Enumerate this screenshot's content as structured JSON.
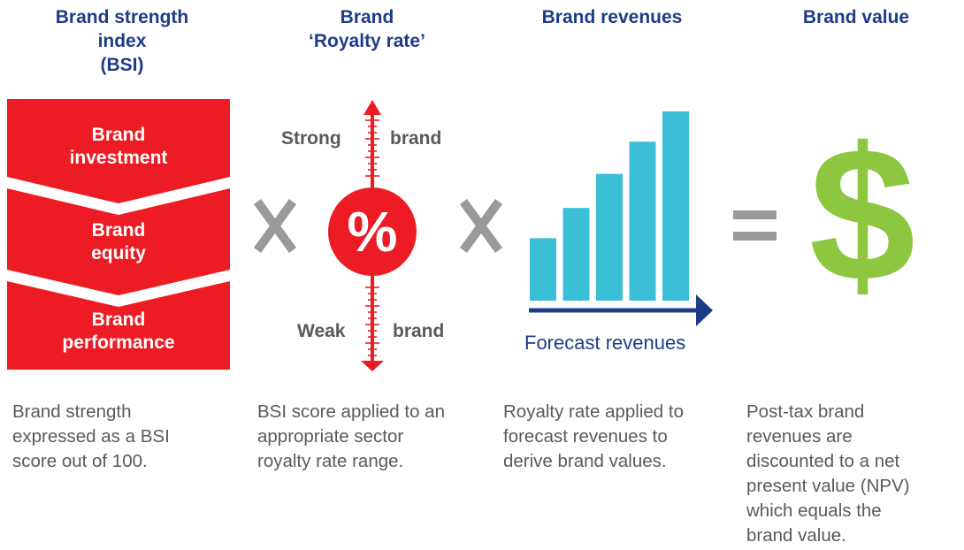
{
  "columns": [
    {
      "heading": [
        "Brand strength",
        "index",
        "(BSI)"
      ],
      "description": [
        "Brand strength",
        "expressed as a BSI",
        "score out of 100."
      ]
    },
    {
      "heading": [
        "Brand",
        "‘Royalty rate’"
      ],
      "description": [
        "BSI score applied to an",
        "appropriate sector",
        "royalty rate range."
      ]
    },
    {
      "heading": [
        "Brand revenues"
      ],
      "description": [
        "Royalty rate applied to",
        "forecast revenues to",
        "derive brand values."
      ]
    },
    {
      "heading": [
        "Brand value"
      ],
      "description": [
        "Post-tax brand",
        "revenues are",
        "discounted to a net",
        "present value (NPV)",
        "which equals the",
        "brand value."
      ]
    }
  ],
  "bsi_stack": [
    [
      "Brand",
      "investment"
    ],
    [
      "Brand",
      "equity"
    ],
    [
      "Brand",
      "performance"
    ]
  ],
  "royalty_scale": {
    "symbol": "%",
    "top_left": "Strong",
    "top_right": "brand",
    "bottom_left": "Weak",
    "bottom_right": "brand"
  },
  "operators": {
    "multiply": "X",
    "equals": "="
  },
  "revenue_chart": {
    "x_label": "Forecast revenues",
    "bar_levels": [
      0.33,
      0.49,
      0.67,
      0.84,
      1.0
    ]
  },
  "value_symbol": "$",
  "colors": {
    "heading": "#1f3c88",
    "red": "#ed1c24",
    "bar": "#3bbfd6",
    "green": "#8dc63f",
    "operator": "#9a9a9a",
    "body_text": "#5a5a5a"
  }
}
